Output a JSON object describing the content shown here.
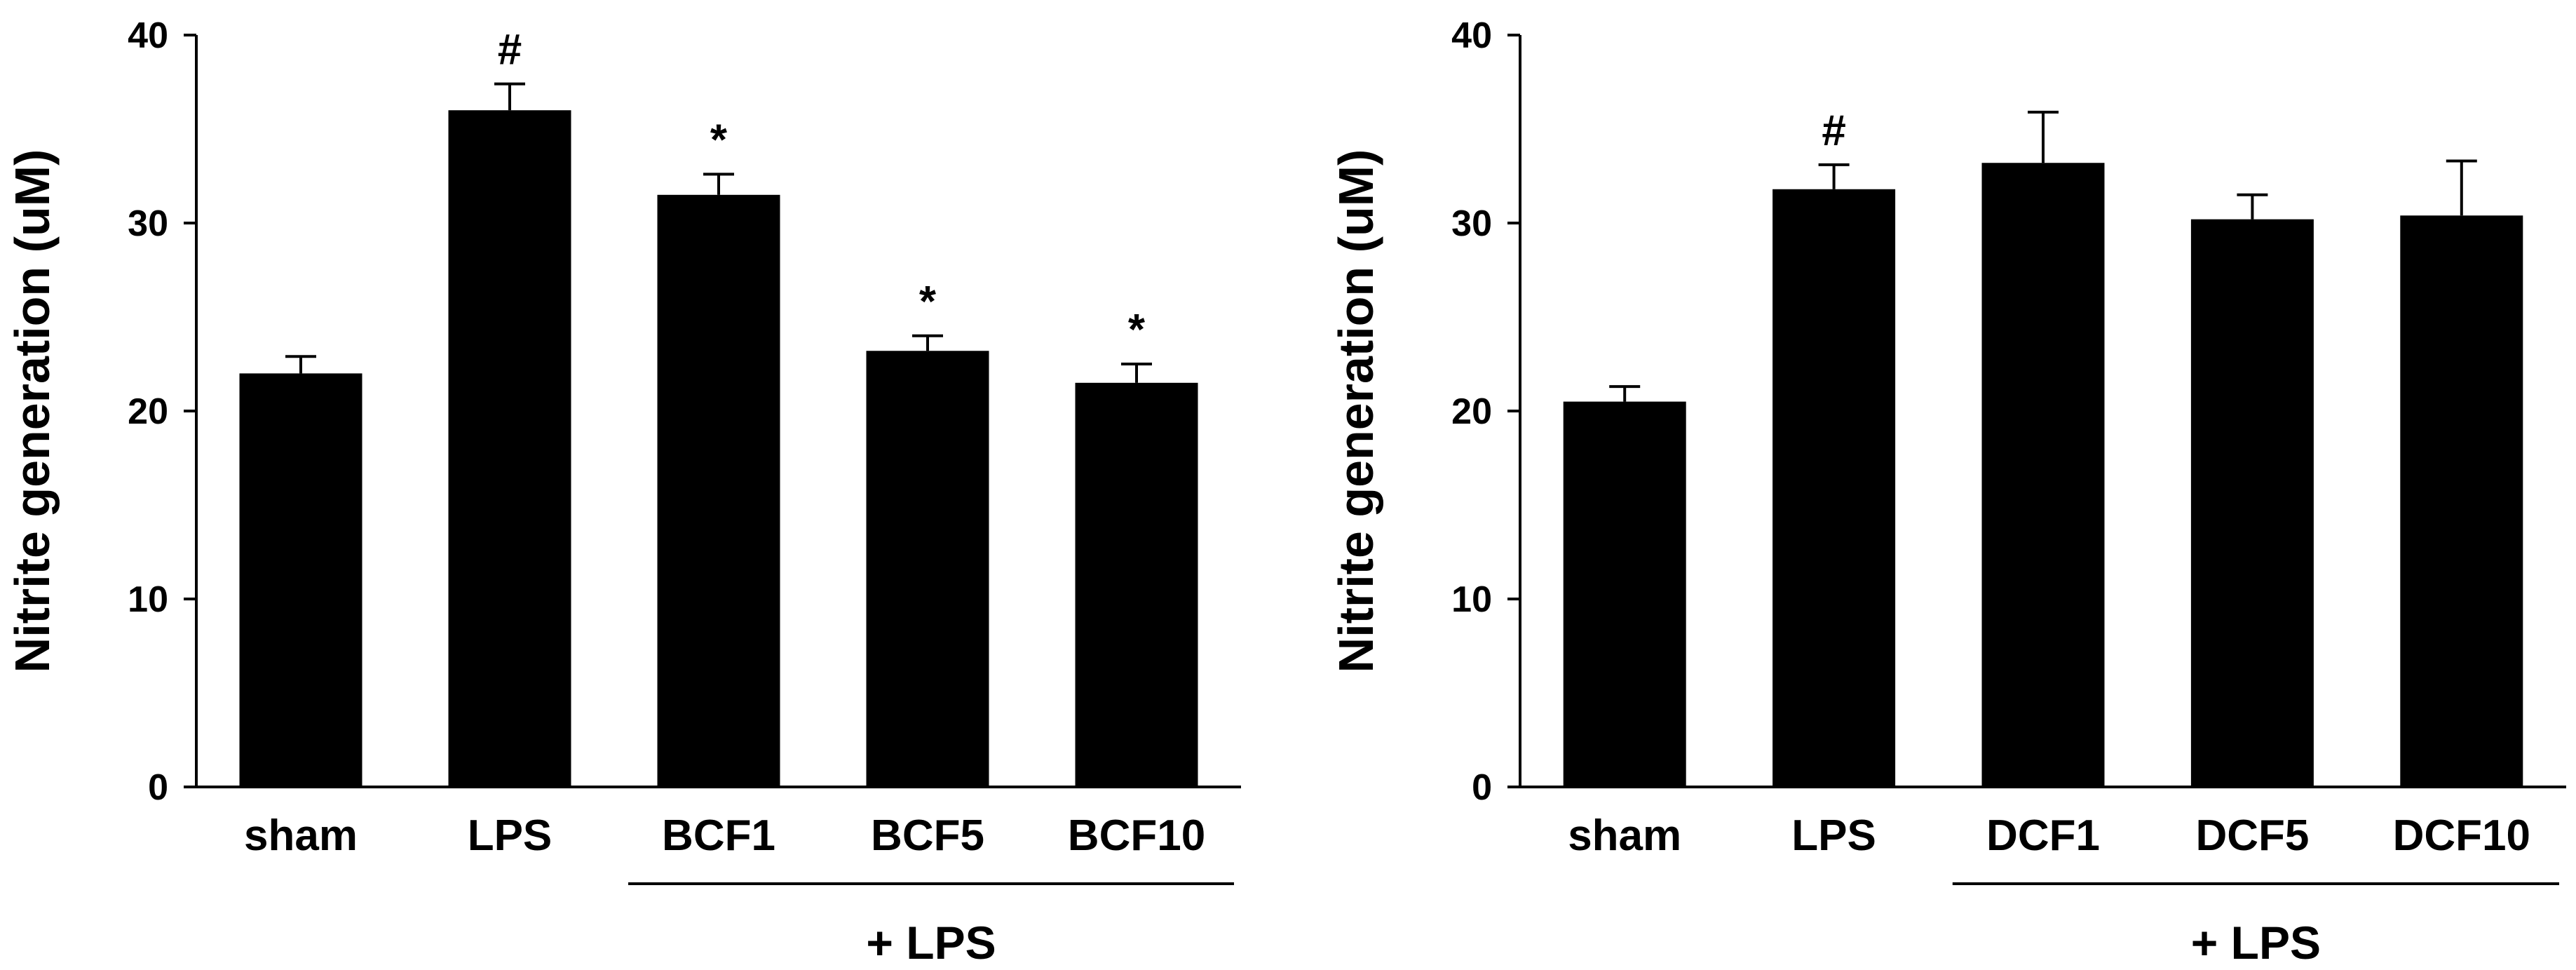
{
  "chart_data": [
    {
      "type": "bar",
      "title": "",
      "xlabel": "",
      "ylabel": "Nitrite generation (uM)",
      "ylim": [
        0,
        40
      ],
      "yticks": [
        0,
        10,
        20,
        30,
        40
      ],
      "yticklabels": [
        "0",
        "10",
        "20",
        "30",
        "40"
      ],
      "categories": [
        "sham",
        "LPS",
        "BCF1",
        "BCF5",
        "BCF10"
      ],
      "values": [
        22,
        36,
        31.5,
        23.2,
        21.5
      ],
      "errors": [
        0.9,
        1.4,
        1.1,
        0.8,
        1.0
      ],
      "annotations": [
        "",
        "#",
        "*",
        "*",
        "*"
      ],
      "group_label": "+ LPS",
      "group_span": [
        "BCF1",
        "BCF10"
      ],
      "bar_color": "#000000"
    },
    {
      "type": "bar",
      "title": "",
      "xlabel": "",
      "ylabel": "Nitrite generation (uM)",
      "ylim": [
        0,
        40
      ],
      "yticks": [
        0,
        10,
        20,
        30,
        40
      ],
      "yticklabels": [
        "0",
        "10",
        "20",
        "30",
        "40"
      ],
      "categories": [
        "sham",
        "LPS",
        "DCF1",
        "DCF5",
        "DCF10"
      ],
      "values": [
        20.5,
        31.8,
        33.2,
        30.2,
        30.4
      ],
      "errors": [
        0.8,
        1.3,
        2.7,
        1.3,
        2.9
      ],
      "annotations": [
        "",
        "#",
        "",
        "",
        ""
      ],
      "group_label": "+ LPS",
      "group_span": [
        "DCF1",
        "DCF10"
      ],
      "bar_color": "#000000"
    }
  ]
}
